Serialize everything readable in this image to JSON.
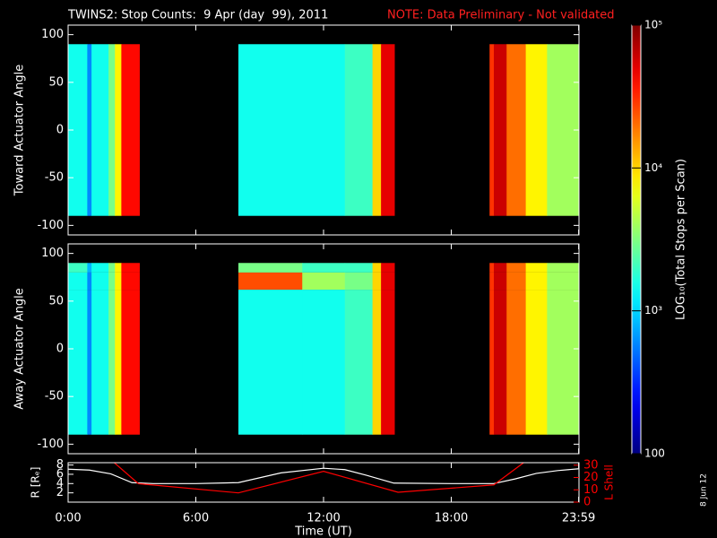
{
  "header": {
    "title": "TWINS2: Stop Counts:  9 Apr (day  99), 2011",
    "note": "NOTE: Data Preliminary - Not validated",
    "stamp": "8 Jun 12"
  },
  "colorbar": {
    "label": "LOG₁₀(Total Stops per Scan)",
    "scale": "log",
    "zlim": [
      100,
      100000
    ],
    "ticks": [
      {
        "value": 100000,
        "label": "10⁵"
      },
      {
        "value": 10000,
        "label": "10⁴"
      },
      {
        "value": 1000,
        "label": "10³"
      },
      100
    ]
  },
  "chart_data": [
    {
      "type": "heatmap",
      "y_label": "Toward Actuator Angle",
      "ylim": [
        -110,
        110
      ],
      "yticks": [
        -100,
        -50,
        0,
        50,
        100
      ],
      "x_edges": [
        0,
        0.9,
        1.1,
        1.9,
        2.2,
        2.5,
        3.35,
        8.0,
        13.0,
        14.3,
        14.7,
        15.33,
        19.8,
        20.0,
        20.6,
        21.5,
        22.5,
        24
      ],
      "y_edges": [
        -90,
        90
      ],
      "z": [
        [
          1500
        ],
        [
          600
        ],
        [
          1500
        ],
        [
          3000
        ],
        [
          8000
        ],
        [
          40000
        ],
        [
          null
        ],
        [
          1500
        ],
        [
          2000
        ],
        [
          10000
        ],
        [
          50000
        ],
        [
          null
        ],
        [
          30000
        ],
        [
          60000
        ],
        [
          20000
        ],
        [
          8000
        ],
        [
          4000
        ]
      ]
    },
    {
      "type": "heatmap",
      "y_label": "Away Actuator Angle",
      "ylim": [
        -110,
        110
      ],
      "yticks": [
        -100,
        -50,
        0,
        50,
        100
      ],
      "x_edges": [
        0,
        0.9,
        1.1,
        1.9,
        2.2,
        2.5,
        3.35,
        8.0,
        11.0,
        13.0,
        14.3,
        14.7,
        15.33,
        19.8,
        20.0,
        20.6,
        21.5,
        22.5,
        24
      ],
      "y_edges": [
        -90,
        62,
        80,
        90
      ],
      "z": [
        [
          1500,
          1500,
          2000
        ],
        [
          600,
          600,
          800
        ],
        [
          1500,
          1500,
          1500
        ],
        [
          3000,
          3000,
          3000
        ],
        [
          8000,
          8000,
          8000
        ],
        [
          40000,
          40000,
          40000
        ],
        [
          null,
          null,
          null
        ],
        [
          1500,
          25000,
          3000
        ],
        [
          1500,
          4000,
          2000
        ],
        [
          2000,
          3000,
          2000
        ],
        [
          10000,
          10000,
          10000
        ],
        [
          50000,
          50000,
          50000
        ],
        [
          null,
          null,
          null
        ],
        [
          30000,
          30000,
          30000
        ],
        [
          60000,
          60000,
          60000
        ],
        [
          20000,
          20000,
          20000
        ],
        [
          8000,
          8000,
          8000
        ],
        [
          4000,
          4000,
          4000
        ]
      ]
    },
    {
      "type": "line",
      "x_label": "Time (UT)",
      "xlim": [
        0,
        24
      ],
      "xticks": [
        {
          "value": 0,
          "label": "0:00"
        },
        {
          "value": 6,
          "label": "6:00"
        },
        {
          "value": 12,
          "label": "12:00"
        },
        {
          "value": 18,
          "label": "18:00"
        },
        {
          "value": 23.983,
          "label": "23:59"
        }
      ],
      "y_label": "R [Rₑ]",
      "ylim": [
        0,
        8.5
      ],
      "yticks": [
        2,
        4,
        6,
        8
      ],
      "y2_label": "L Shell",
      "y2lim": [
        0,
        32
      ],
      "y2ticks": [
        0,
        10,
        20,
        30
      ],
      "series": [
        {
          "name": "R",
          "color": "#ffffff",
          "x": [
            0,
            1,
            2,
            3,
            4,
            6,
            8,
            10,
            12,
            13,
            14,
            15.3,
            18,
            20,
            21,
            22,
            23,
            24
          ],
          "values": [
            7.1,
            6.9,
            6.1,
            4.2,
            4.0,
            4.0,
            4.2,
            6.3,
            7.3,
            7.0,
            5.8,
            4.1,
            4.0,
            4.0,
            5.0,
            6.2,
            6.8,
            7.2
          ]
        },
        {
          "name": "L Shell",
          "color": "#ff0000",
          "axis": "y2",
          "x": [
            2.1,
            3.3,
            8.0,
            12.0,
            15.5,
            20.0,
            21.4
          ],
          "values": [
            33,
            15,
            7.5,
            25,
            8,
            14,
            32
          ]
        }
      ]
    }
  ]
}
